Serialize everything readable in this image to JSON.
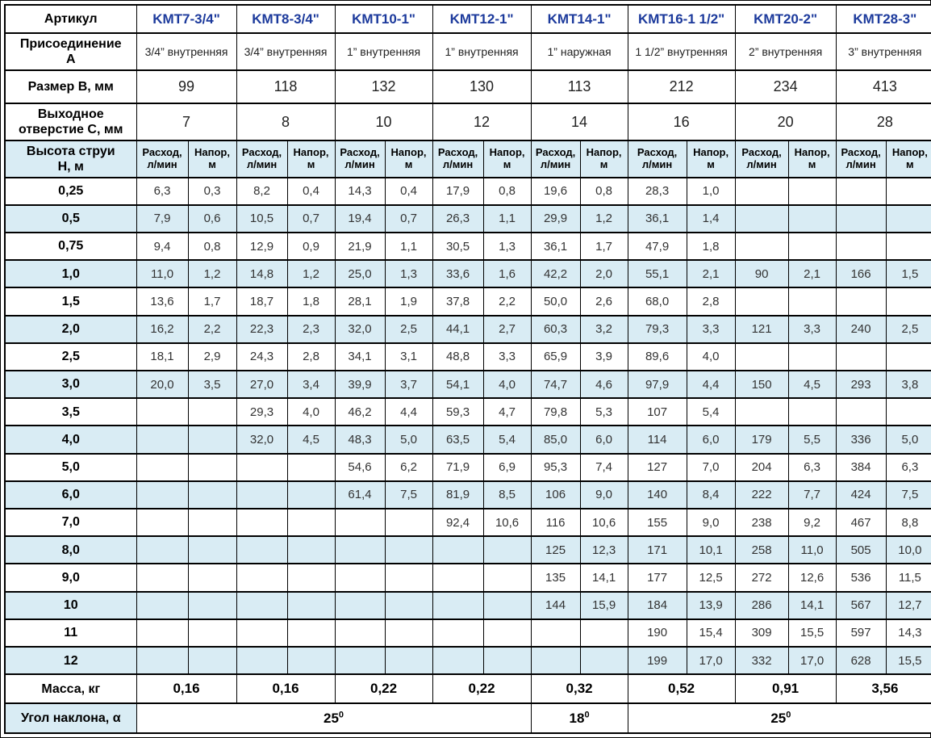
{
  "colors": {
    "accent": "#1c3a9c",
    "row_alt": "#d9ecf4",
    "border": "#000000",
    "background": "#ffffff"
  },
  "table": {
    "article_label": "Артикул",
    "connection_label": "Присоединение\nА",
    "size_label": "Размер В, мм",
    "outlet_label": "Выходное\nотверстие С, мм",
    "height_label": "Высота струи\nН, м",
    "flow_label": "Расход,\nл/мин",
    "head_label": "Напор,\nм",
    "mass_label": "Масса, кг",
    "angle_label": "Угол наклона, α",
    "articles": [
      {
        "name": "KMT7-3/4\"",
        "connection": "3/4” внутренняя",
        "size_b": "99",
        "outlet_c": "7",
        "mass": "0,16"
      },
      {
        "name": "KMT8-3/4\"",
        "connection": "3/4” внутренняя",
        "size_b": "118",
        "outlet_c": "8",
        "mass": "0,16"
      },
      {
        "name": "KMT10-1\"",
        "connection": "1” внутренняя",
        "size_b": "132",
        "outlet_c": "10",
        "mass": "0,22"
      },
      {
        "name": "KMT12-1\"",
        "connection": "1” внутренняя",
        "size_b": "130",
        "outlet_c": "12",
        "mass": "0,22"
      },
      {
        "name": "KMT14-1\"",
        "connection": "1” наружная",
        "size_b": "113",
        "outlet_c": "14",
        "mass": "0,32"
      },
      {
        "name": "KMT16-1 1/2\"",
        "connection": "1 1/2” внутренняя",
        "size_b": "212",
        "outlet_c": "16",
        "mass": "0,52"
      },
      {
        "name": "KMT20-2\"",
        "connection": "2” внутренняя",
        "size_b": "234",
        "outlet_c": "20",
        "mass": "0,91"
      },
      {
        "name": "KMT28-3\"",
        "connection": "3” внутренняя",
        "size_b": "413",
        "outlet_c": "28",
        "mass": "3,56"
      }
    ],
    "rows": [
      {
        "h": "0,25",
        "cells": [
          "6,3",
          "0,3",
          "8,2",
          "0,4",
          "14,3",
          "0,4",
          "17,9",
          "0,8",
          "19,6",
          "0,8",
          "28,3",
          "1,0",
          "",
          "",
          "",
          ""
        ]
      },
      {
        "h": "0,5",
        "cells": [
          "7,9",
          "0,6",
          "10,5",
          "0,7",
          "19,4",
          "0,7",
          "26,3",
          "1,1",
          "29,9",
          "1,2",
          "36,1",
          "1,4",
          "",
          "",
          "",
          ""
        ]
      },
      {
        "h": "0,75",
        "cells": [
          "9,4",
          "0,8",
          "12,9",
          "0,9",
          "21,9",
          "1,1",
          "30,5",
          "1,3",
          "36,1",
          "1,7",
          "47,9",
          "1,8",
          "",
          "",
          "",
          ""
        ]
      },
      {
        "h": "1,0",
        "cells": [
          "11,0",
          "1,2",
          "14,8",
          "1,2",
          "25,0",
          "1,3",
          "33,6",
          "1,6",
          "42,2",
          "2,0",
          "55,1",
          "2,1",
          "90",
          "2,1",
          "166",
          "1,5"
        ]
      },
      {
        "h": "1,5",
        "cells": [
          "13,6",
          "1,7",
          "18,7",
          "1,8",
          "28,1",
          "1,9",
          "37,8",
          "2,2",
          "50,0",
          "2,6",
          "68,0",
          "2,8",
          "",
          "",
          "",
          ""
        ]
      },
      {
        "h": "2,0",
        "cells": [
          "16,2",
          "2,2",
          "22,3",
          "2,3",
          "32,0",
          "2,5",
          "44,1",
          "2,7",
          "60,3",
          "3,2",
          "79,3",
          "3,3",
          "121",
          "3,3",
          "240",
          "2,5"
        ]
      },
      {
        "h": "2,5",
        "cells": [
          "18,1",
          "2,9",
          "24,3",
          "2,8",
          "34,1",
          "3,1",
          "48,8",
          "3,3",
          "65,9",
          "3,9",
          "89,6",
          "4,0",
          "",
          "",
          "",
          ""
        ]
      },
      {
        "h": "3,0",
        "cells": [
          "20,0",
          "3,5",
          "27,0",
          "3,4",
          "39,9",
          "3,7",
          "54,1",
          "4,0",
          "74,7",
          "4,6",
          "97,9",
          "4,4",
          "150",
          "4,5",
          "293",
          "3,8"
        ]
      },
      {
        "h": "3,5",
        "cells": [
          "",
          "",
          "29,3",
          "4,0",
          "46,2",
          "4,4",
          "59,3",
          "4,7",
          "79,8",
          "5,3",
          "107",
          "5,4",
          "",
          "",
          "",
          ""
        ]
      },
      {
        "h": "4,0",
        "cells": [
          "",
          "",
          "32,0",
          "4,5",
          "48,3",
          "5,0",
          "63,5",
          "5,4",
          "85,0",
          "6,0",
          "114",
          "6,0",
          "179",
          "5,5",
          "336",
          "5,0"
        ]
      },
      {
        "h": "5,0",
        "cells": [
          "",
          "",
          "",
          "",
          "54,6",
          "6,2",
          "71,9",
          "6,9",
          "95,3",
          "7,4",
          "127",
          "7,0",
          "204",
          "6,3",
          "384",
          "6,3"
        ]
      },
      {
        "h": "6,0",
        "cells": [
          "",
          "",
          "",
          "",
          "61,4",
          "7,5",
          "81,9",
          "8,5",
          "106",
          "9,0",
          "140",
          "8,4",
          "222",
          "7,7",
          "424",
          "7,5"
        ]
      },
      {
        "h": "7,0",
        "cells": [
          "",
          "",
          "",
          "",
          "",
          "",
          "92,4",
          "10,6",
          "116",
          "10,6",
          "155",
          "9,0",
          "238",
          "9,2",
          "467",
          "8,8"
        ]
      },
      {
        "h": "8,0",
        "cells": [
          "",
          "",
          "",
          "",
          "",
          "",
          "",
          "",
          "125",
          "12,3",
          "171",
          "10,1",
          "258",
          "11,0",
          "505",
          "10,0"
        ]
      },
      {
        "h": "9,0",
        "cells": [
          "",
          "",
          "",
          "",
          "",
          "",
          "",
          "",
          "135",
          "14,1",
          "177",
          "12,5",
          "272",
          "12,6",
          "536",
          "11,5"
        ]
      },
      {
        "h": "10",
        "cells": [
          "",
          "",
          "",
          "",
          "",
          "",
          "",
          "",
          "144",
          "15,9",
          "184",
          "13,9",
          "286",
          "14,1",
          "567",
          "12,7"
        ]
      },
      {
        "h": "11",
        "cells": [
          "",
          "",
          "",
          "",
          "",
          "",
          "",
          "",
          "",
          "",
          "190",
          "15,4",
          "309",
          "15,5",
          "597",
          "14,3"
        ]
      },
      {
        "h": "12",
        "cells": [
          "",
          "",
          "",
          "",
          "",
          "",
          "",
          "",
          "",
          "",
          "199",
          "17,0",
          "332",
          "17,0",
          "628",
          "15,5"
        ]
      }
    ],
    "angles": [
      {
        "value": "25",
        "sup": "0",
        "span": 8
      },
      {
        "value": "18",
        "sup": "0",
        "span": 2
      },
      {
        "value": "25",
        "sup": "0",
        "span": 6
      }
    ]
  }
}
